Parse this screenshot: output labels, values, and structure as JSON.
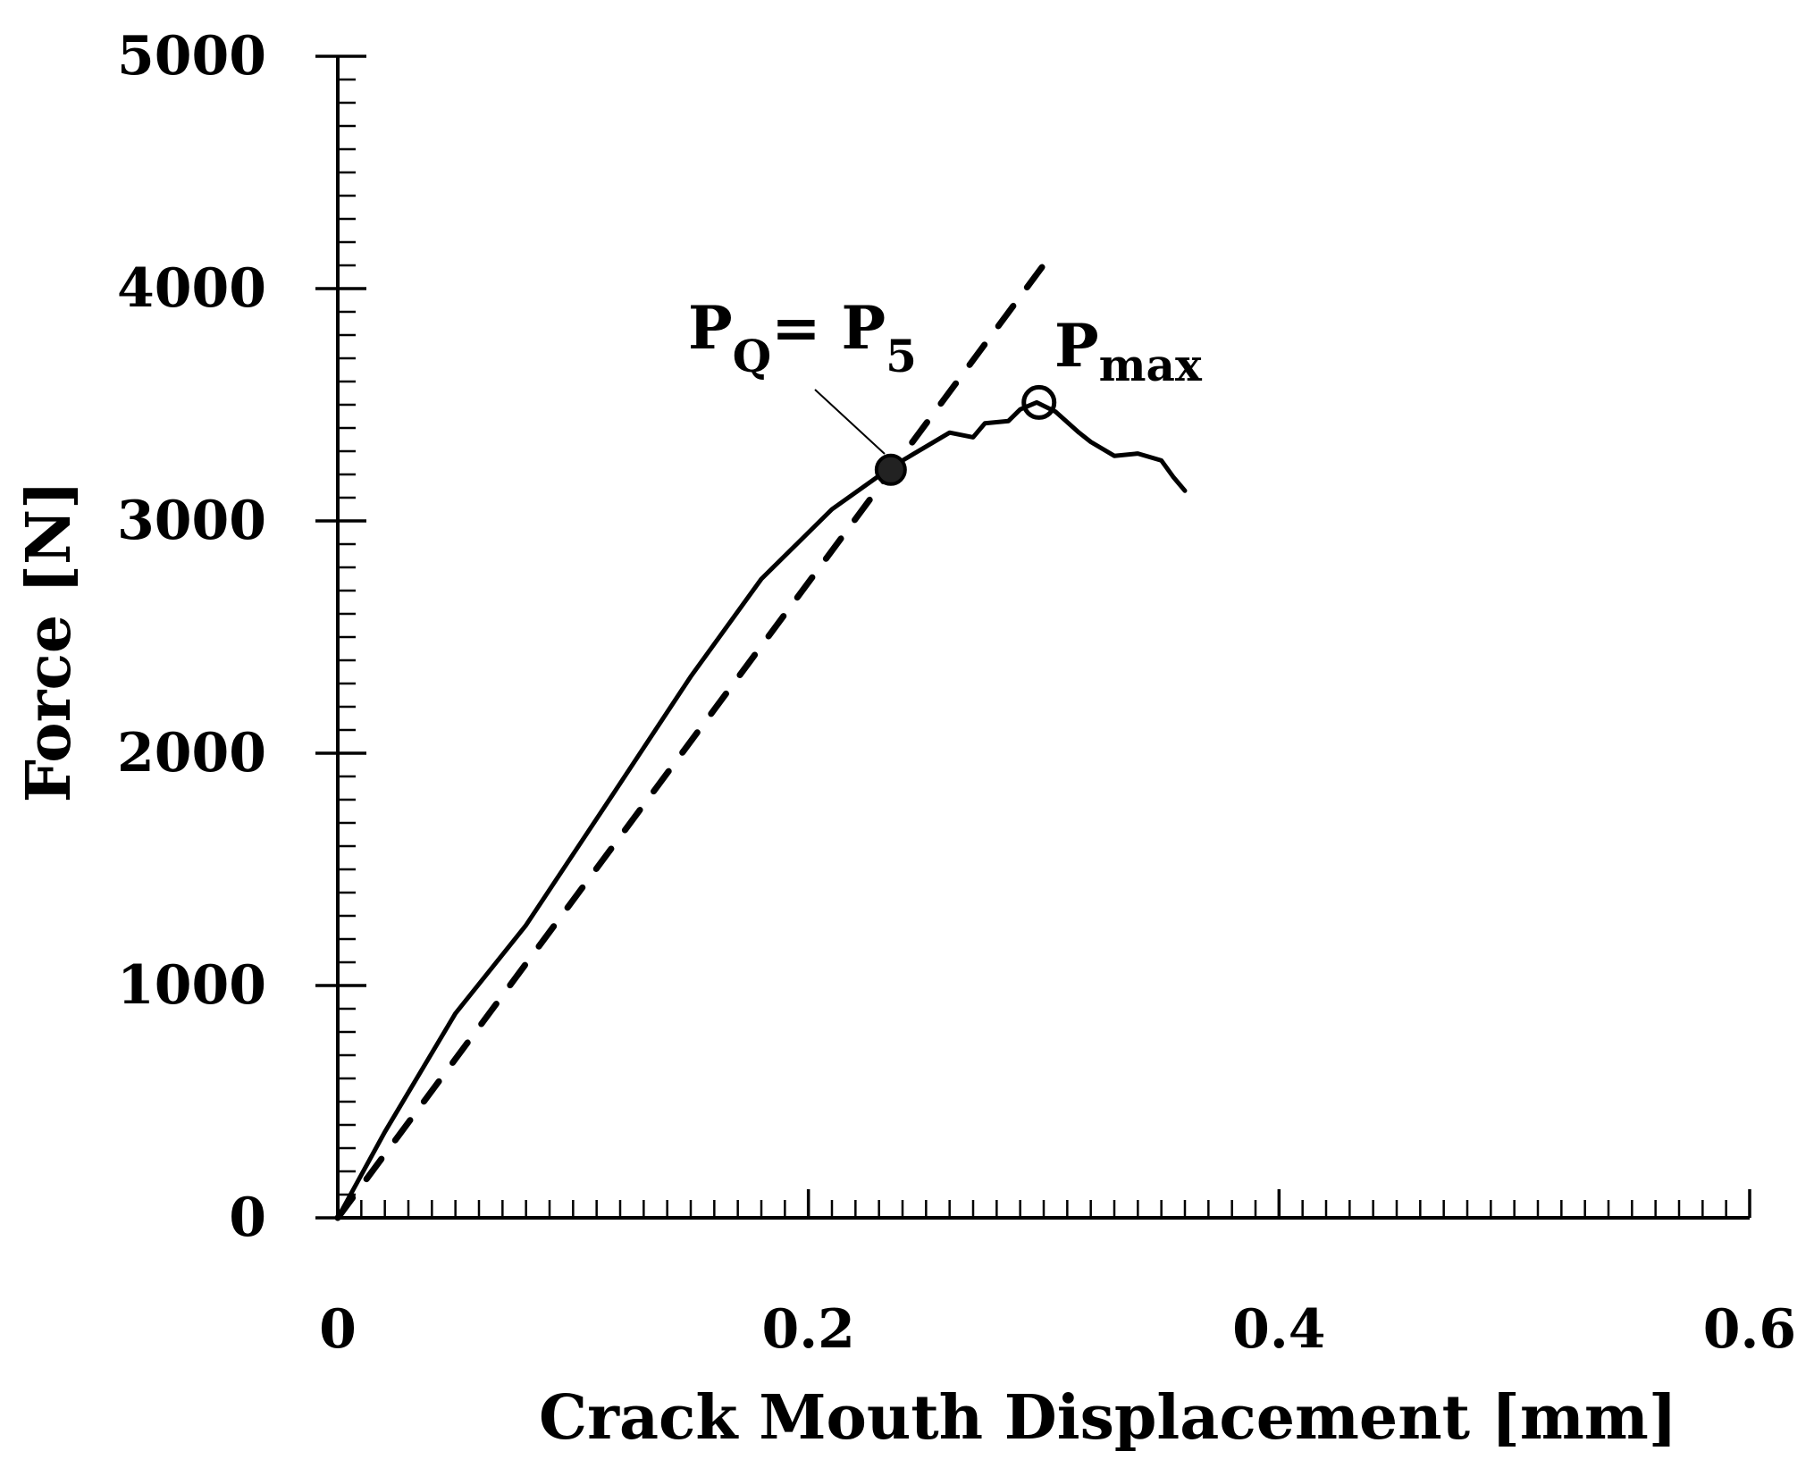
{
  "chart_data": {
    "type": "line",
    "title": "",
    "xlabel": "Crack Mouth Displacement [mm]",
    "ylabel": "Force [N]",
    "xlim": [
      0,
      0.6
    ],
    "ylim": [
      0,
      5000
    ],
    "x_ticks": [
      "0",
      "0.2",
      "0.4",
      "0.6"
    ],
    "y_ticks": [
      "0",
      "1000",
      "2000",
      "3000",
      "4000",
      "5000"
    ],
    "grid": false,
    "legend": "none",
    "series": [
      {
        "style": "solid",
        "color": "#000000",
        "points": [
          [
            0.0,
            0
          ],
          [
            0.02,
            370
          ],
          [
            0.05,
            880
          ],
          [
            0.08,
            1260
          ],
          [
            0.12,
            1870
          ],
          [
            0.15,
            2330
          ],
          [
            0.18,
            2750
          ],
          [
            0.21,
            3050
          ],
          [
            0.235,
            3230
          ],
          [
            0.25,
            3320
          ],
          [
            0.26,
            3380
          ],
          [
            0.27,
            3360
          ],
          [
            0.275,
            3420
          ],
          [
            0.285,
            3430
          ],
          [
            0.29,
            3480
          ],
          [
            0.297,
            3510
          ],
          [
            0.305,
            3470
          ],
          [
            0.315,
            3380
          ],
          [
            0.32,
            3340
          ],
          [
            0.33,
            3280
          ],
          [
            0.34,
            3290
          ],
          [
            0.35,
            3260
          ],
          [
            0.355,
            3190
          ],
          [
            0.36,
            3130
          ]
        ]
      },
      {
        "style": "dashed",
        "color": "#000000",
        "points": [
          [
            0.0,
            0
          ],
          [
            0.302,
            4130
          ]
        ]
      }
    ],
    "markers": [
      {
        "label": "P_Q = P_5",
        "x": 0.235,
        "y": 3220,
        "symbol": "filled-circle"
      },
      {
        "label": "P_max",
        "x": 0.298,
        "y": 3510,
        "symbol": "open-circle"
      }
    ],
    "annotations": {
      "pq": {
        "main": "P",
        "sub1": "Q",
        "eq": "= P",
        "sub2": "5"
      },
      "pmax": {
        "main": "P",
        "sub": "max"
      }
    }
  }
}
